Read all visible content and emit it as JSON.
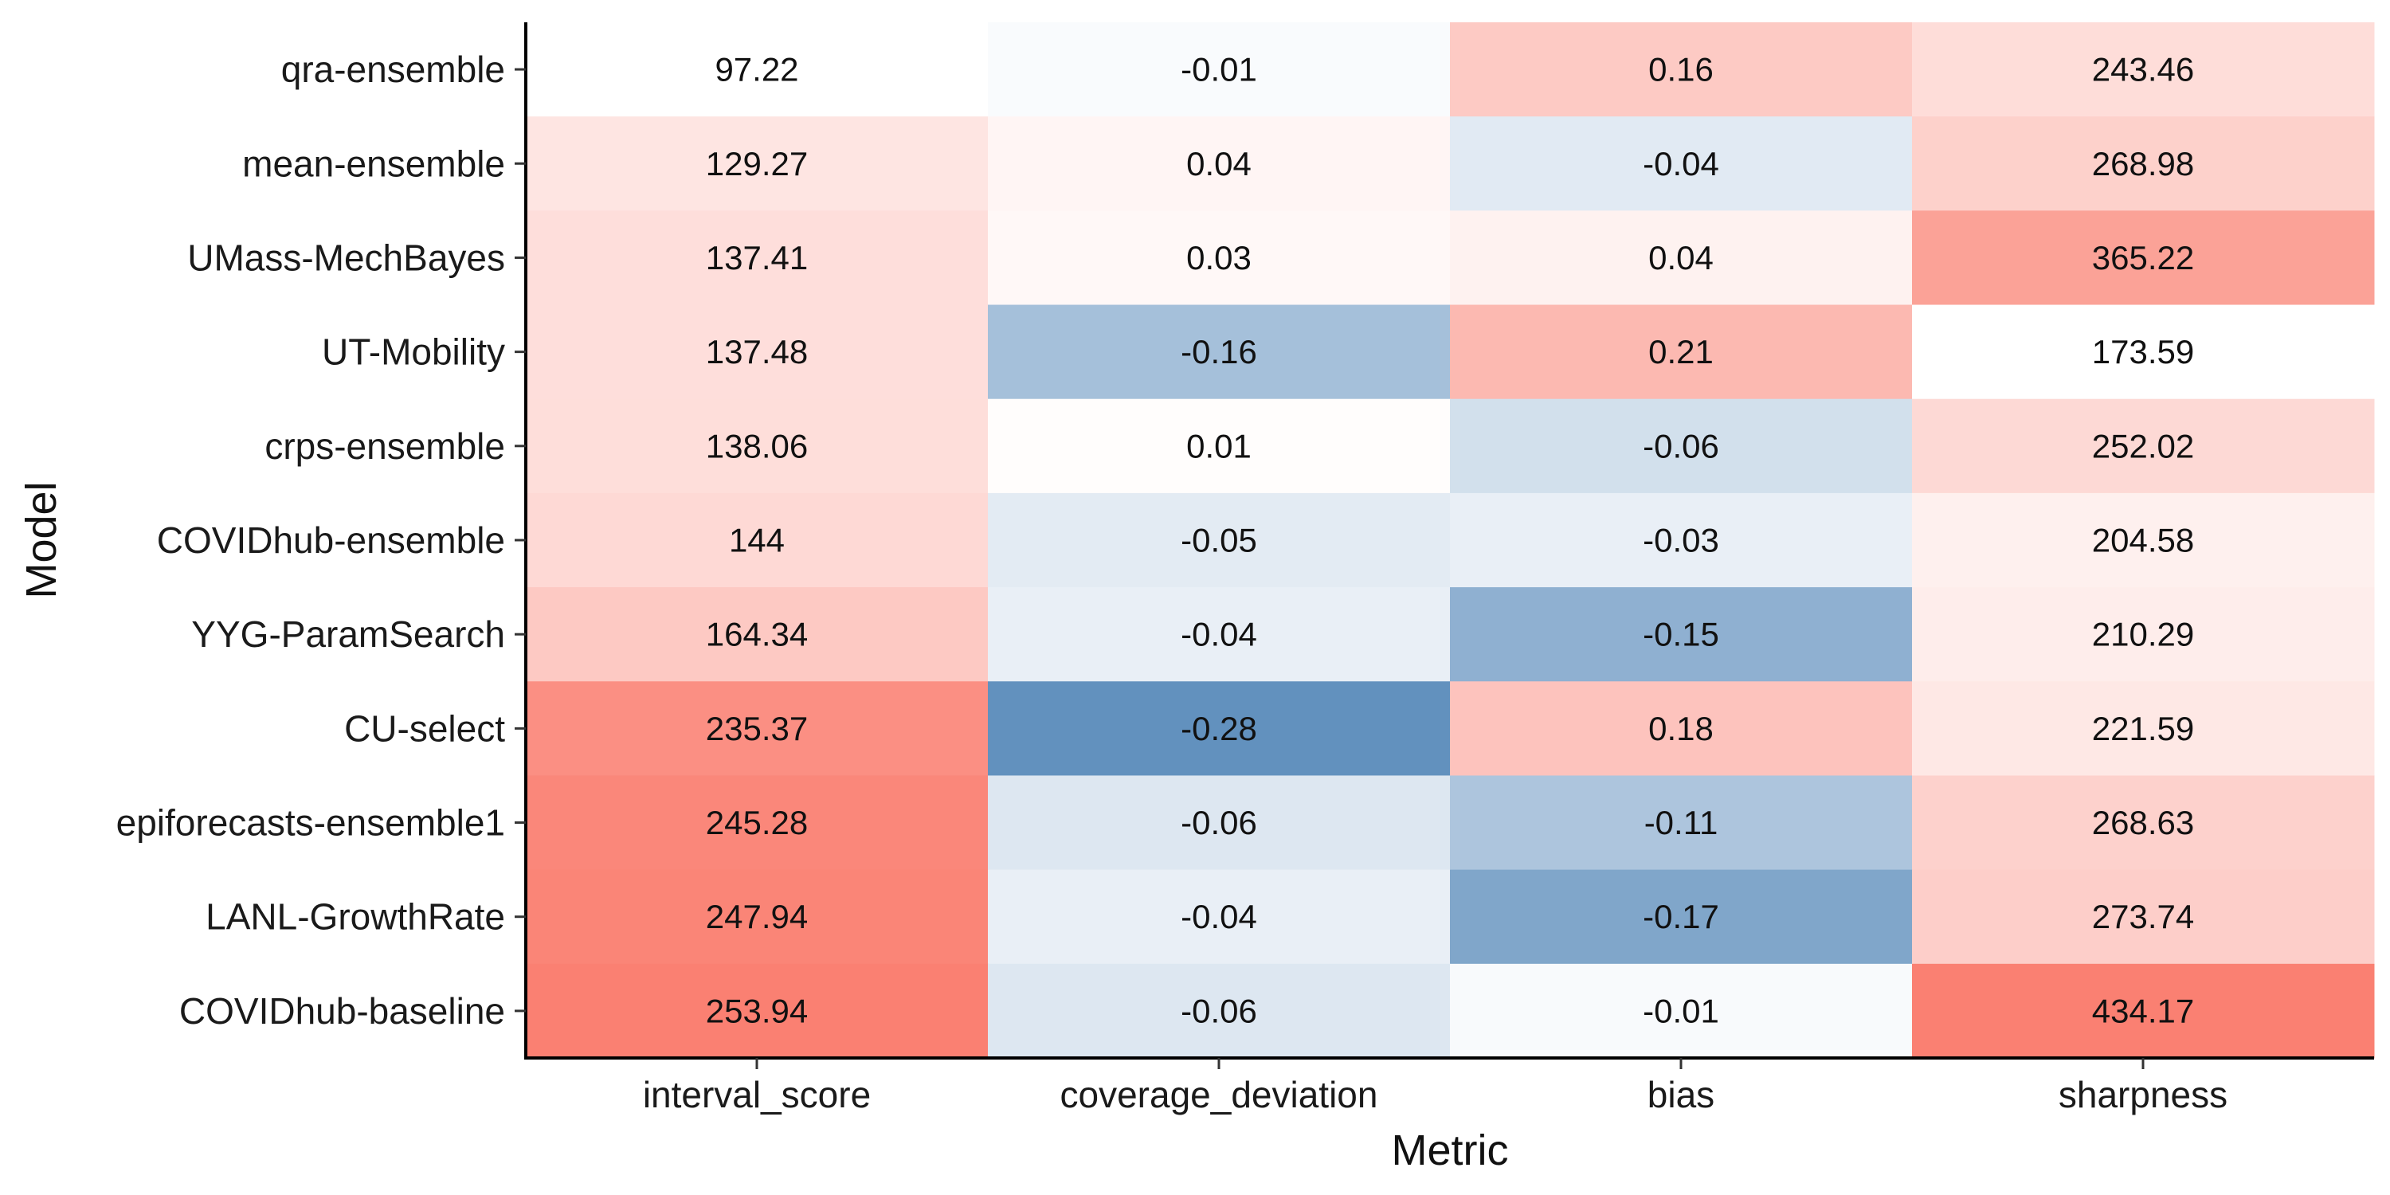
{
  "chart_data": {
    "type": "heatmap",
    "xlabel": "Metric",
    "ylabel": "Model",
    "columns": [
      "interval_score",
      "coverage_deviation",
      "bias",
      "sharpness"
    ],
    "rows": [
      "qra-ensemble",
      "mean-ensemble",
      "UMass-MechBayes",
      "UT-Mobility",
      "crps-ensemble",
      "COVIDhub-ensemble",
      "YYG-ParamSearch",
      "CU-select",
      "epiforecasts-ensemble1",
      "LANL-GrowthRate",
      "COVIDhub-baseline"
    ],
    "values": [
      [
        97.22,
        -0.01,
        0.16,
        243.46
      ],
      [
        129.27,
        0.04,
        -0.04,
        268.98
      ],
      [
        137.41,
        0.03,
        0.04,
        365.22
      ],
      [
        137.48,
        -0.16,
        0.21,
        173.59
      ],
      [
        138.06,
        0.01,
        -0.06,
        252.02
      ],
      [
        144,
        -0.05,
        -0.03,
        204.58
      ],
      [
        164.34,
        -0.04,
        -0.15,
        210.29
      ],
      [
        235.37,
        -0.28,
        0.18,
        221.59
      ],
      [
        245.28,
        -0.06,
        -0.11,
        268.63
      ],
      [
        247.94,
        -0.04,
        -0.17,
        273.74
      ],
      [
        253.94,
        -0.06,
        -0.01,
        434.17
      ]
    ],
    "color_scale": {
      "low": "#6291be",
      "mid": "#ffffff",
      "high": "#fa8072"
    },
    "grid": false
  }
}
